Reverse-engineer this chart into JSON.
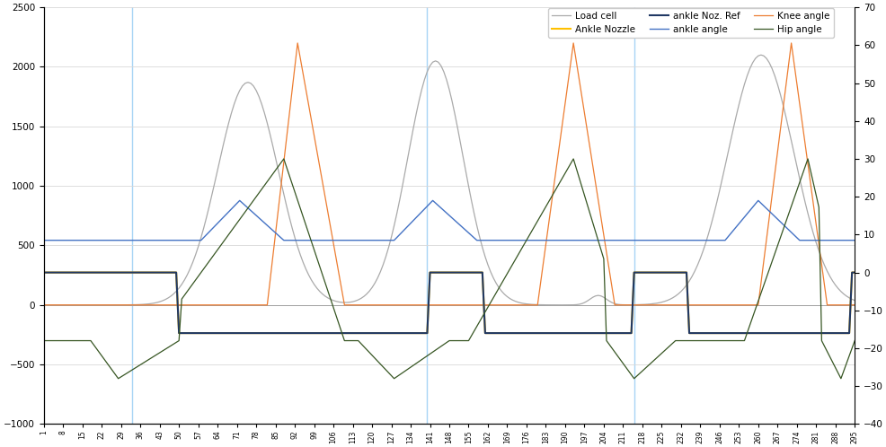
{
  "n_points": 295,
  "xlim": [
    1,
    295
  ],
  "ylim_left": [
    -1000,
    2500
  ],
  "ylim_right": [
    -40,
    70
  ],
  "yticks_left": [
    -1000,
    -500,
    0,
    500,
    1000,
    1500,
    2000,
    2500
  ],
  "yticks_right": [
    -40,
    -30,
    -20,
    -10,
    0,
    10,
    20,
    30,
    40,
    50,
    60,
    70
  ],
  "vlines": [
    33,
    140,
    215
  ],
  "colors": {
    "load_cell": "#aaaaaa",
    "ankle_angle": "#4472C4",
    "ankle_nozzle": "#FFC000",
    "knee_angle": "#ED7D31",
    "ankle_noz_ref": "#203864",
    "hip_angle": "#375623"
  },
  "legend_order": [
    "Load cell",
    "Ankle Nozzle",
    "ankle Noz. Ref",
    "ankle angle",
    "Knee angle",
    "Hip angle"
  ],
  "grid_color": "#d8d8d8",
  "bg_color": "#ffffff"
}
